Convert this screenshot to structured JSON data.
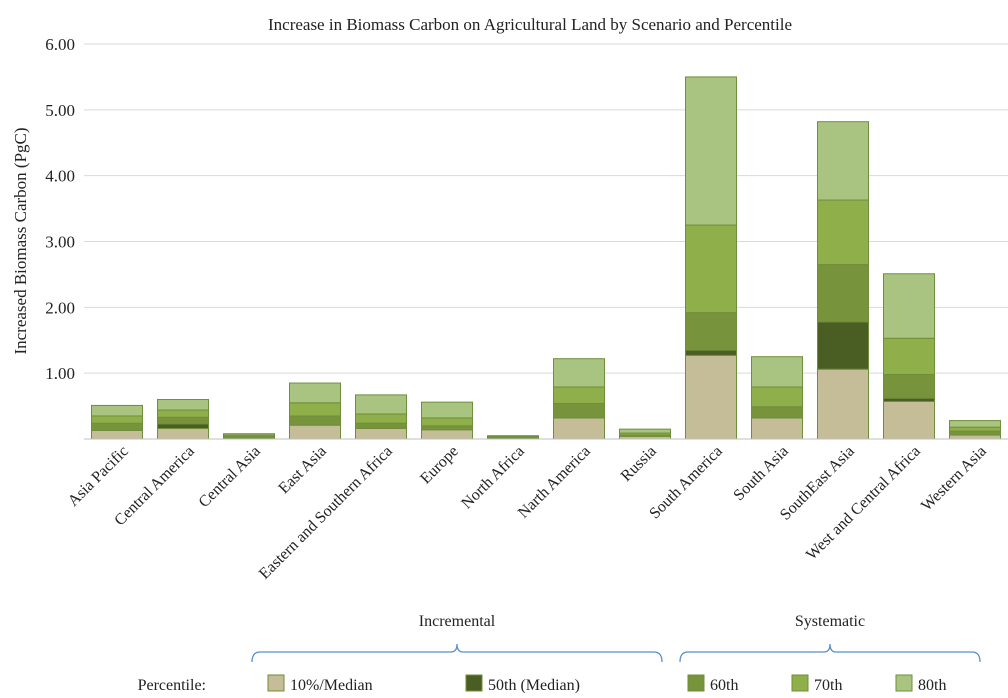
{
  "chart_data": {
    "type": "bar",
    "stacked": true,
    "title": "Increase in Biomass Carbon on Agricultural Land by Scenario and Percentile",
    "ylabel": "Increased Biomass Carbon (PgC)",
    "xlabel": "",
    "ylim": [
      0,
      6
    ],
    "yticks": [
      "6.00",
      "5.00",
      "4.00",
      "3.00",
      "2.00",
      "1.00"
    ],
    "grid": true,
    "categories": [
      "Asia Pacific",
      "Central America",
      "Central Asia",
      "East Asia",
      "Eastern and Southern Africa",
      "Europe",
      "North Africa",
      "Narth America",
      "Russia",
      "South America",
      "South Asia",
      "SouthEast Asia",
      "West and Central Africa",
      "Western Asia"
    ],
    "series": [
      {
        "name": "10%/Median",
        "color": "#c4bd97",
        "values": [
          0.13,
          0.16,
          0.01,
          0.21,
          0.16,
          0.14,
          0.01,
          0.32,
          0.04,
          1.27,
          0.32,
          1.06,
          0.57,
          0.06
        ]
      },
      {
        "name": "50th (Median)",
        "color": "#4a5e23",
        "values": [
          0.0,
          0.07,
          0.0,
          0.0,
          0.0,
          0.0,
          0.0,
          0.0,
          0.0,
          0.08,
          0.0,
          0.72,
          0.05,
          0.0
        ]
      },
      {
        "name": "60th",
        "color": "#77933c",
        "values": [
          0.11,
          0.1,
          0.03,
          0.14,
          0.08,
          0.06,
          0.02,
          0.22,
          0.02,
          0.57,
          0.17,
          0.87,
          0.36,
          0.06
        ]
      },
      {
        "name": "70th",
        "color": "#8faf4a",
        "values": [
          0.11,
          0.11,
          0.02,
          0.2,
          0.14,
          0.12,
          0.01,
          0.25,
          0.03,
          1.33,
          0.3,
          0.98,
          0.55,
          0.06
        ]
      },
      {
        "name": "80th",
        "color": "#a9c480",
        "values": [
          0.16,
          0.16,
          0.02,
          0.3,
          0.29,
          0.24,
          0.01,
          0.43,
          0.06,
          2.25,
          0.46,
          1.19,
          0.98,
          0.1
        ]
      }
    ],
    "groups": [
      {
        "label": "Incremental",
        "from": 0,
        "to": 8
      },
      {
        "label": "Systematic",
        "from": 9,
        "to": 13
      }
    ],
    "legend": {
      "title": "Percentile:",
      "position": "bottom"
    }
  }
}
